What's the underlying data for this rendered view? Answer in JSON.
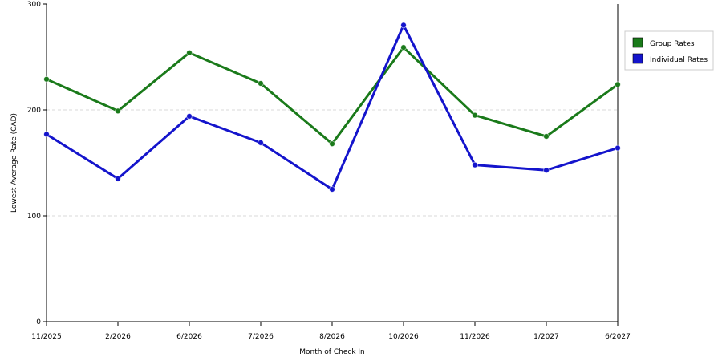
{
  "chart_data": {
    "type": "line",
    "categories": [
      "11/2025",
      "2/2026",
      "6/2026",
      "7/2026",
      "8/2026",
      "10/2026",
      "11/2026",
      "1/2027",
      "6/2027"
    ],
    "series": [
      {
        "name": "Group Rates",
        "color": "#1a7a1a",
        "values": [
          229,
          199,
          254,
          225,
          168,
          259,
          195,
          175,
          224
        ]
      },
      {
        "name": "Individual Rates",
        "color": "#1414cc",
        "values": [
          177,
          135,
          194,
          169,
          125,
          280,
          148,
          143,
          164
        ]
      }
    ],
    "xlabel": "Month of Check In",
    "ylabel": "Lowest Average Rate (CAD)",
    "ylim": [
      0,
      300
    ],
    "yticks": [
      "0",
      "100",
      "200",
      "300"
    ],
    "grid": true,
    "legend": "right"
  }
}
